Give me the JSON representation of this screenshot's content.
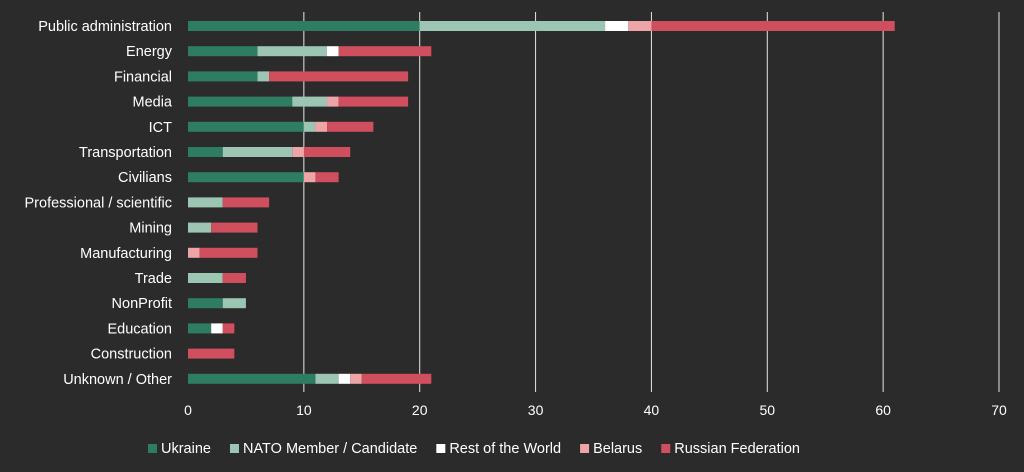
{
  "chart_data": {
    "type": "bar",
    "orientation": "horizontal",
    "stacked": true,
    "categories": [
      "Public administration",
      "Energy",
      "Financial",
      "Media",
      "ICT",
      "Transportation",
      "Civilians",
      "Professional / scientific",
      "Mining",
      "Manufacturing",
      "Trade",
      "NonProfit",
      "Education",
      "Construction",
      "Unknown / Other"
    ],
    "series": [
      {
        "name": "Ukraine",
        "color": "#2e7d62",
        "values": [
          20,
          6,
          6,
          9,
          10,
          3,
          10,
          0,
          0,
          0,
          0,
          3,
          2,
          0,
          11
        ]
      },
      {
        "name": "NATO Member / Candidate",
        "color": "#9cc5b4",
        "values": [
          16,
          6,
          1,
          3,
          1,
          6,
          0,
          3,
          2,
          0,
          3,
          2,
          0,
          0,
          2
        ]
      },
      {
        "name": "Rest of the World",
        "color": "#ffffff",
        "values": [
          2,
          1,
          0,
          0,
          0,
          0,
          0,
          0,
          0,
          0,
          0,
          0,
          1,
          0,
          1
        ]
      },
      {
        "name": "Belarus",
        "color": "#eda5a8",
        "values": [
          2,
          0,
          0,
          1,
          1,
          1,
          1,
          0,
          0,
          1,
          0,
          0,
          0,
          0,
          1
        ]
      },
      {
        "name": "Russian Federation",
        "color": "#d04f5e",
        "values": [
          21,
          8,
          12,
          6,
          4,
          4,
          2,
          4,
          4,
          5,
          2,
          0,
          1,
          4,
          6
        ]
      }
    ],
    "xticks": [
      0,
      10,
      20,
      30,
      40,
      50,
      60,
      70
    ],
    "xlim": [
      0,
      70
    ],
    "grid": "vertical",
    "legend_position": "bottom",
    "title": "",
    "xlabel": "",
    "ylabel": ""
  }
}
